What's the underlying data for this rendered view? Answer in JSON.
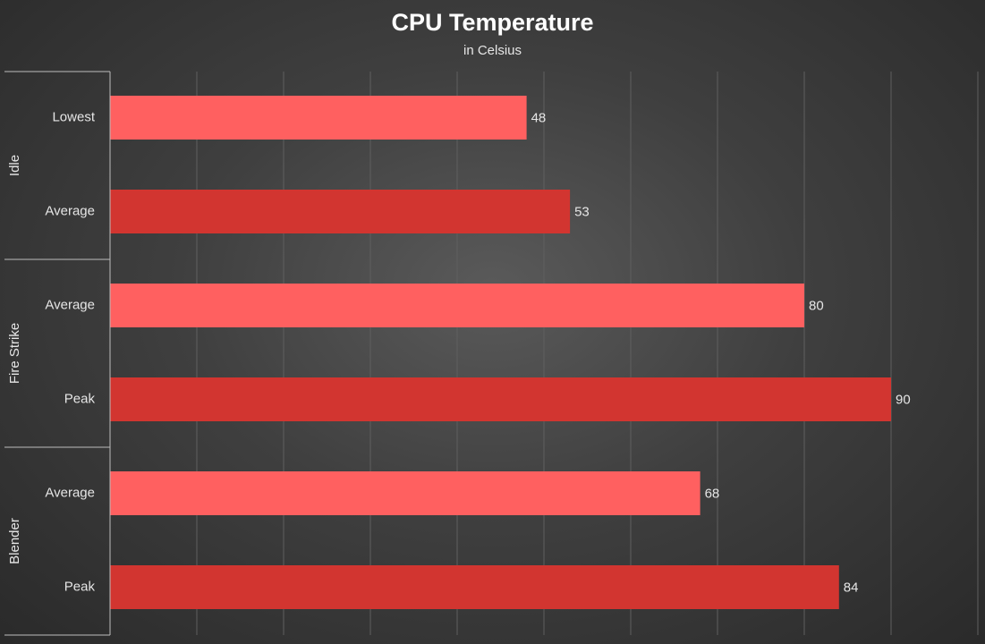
{
  "chart_data": {
    "type": "bar",
    "orientation": "horizontal",
    "title": "CPU Temperature",
    "subtitle": "in Celsius",
    "xlim": [
      0,
      100
    ],
    "grid": true,
    "groups": [
      {
        "name": "Idle",
        "items": [
          {
            "label": "Lowest",
            "value": 48,
            "shade": "light"
          },
          {
            "label": "Average",
            "value": 53,
            "shade": "dark"
          }
        ]
      },
      {
        "name": "Fire Strike",
        "items": [
          {
            "label": "Average",
            "value": 80,
            "shade": "light"
          },
          {
            "label": "Peak",
            "value": 90,
            "shade": "dark"
          }
        ]
      },
      {
        "name": "Blender",
        "items": [
          {
            "label": "Average",
            "value": 68,
            "shade": "light"
          },
          {
            "label": "Peak",
            "value": 84,
            "shade": "dark"
          }
        ]
      }
    ],
    "colors": {
      "light": "#ff6060",
      "dark": "#d23530",
      "text": "#e6e6e6",
      "grid": "#5f5f5f",
      "axis": "#bdbdbd"
    }
  }
}
